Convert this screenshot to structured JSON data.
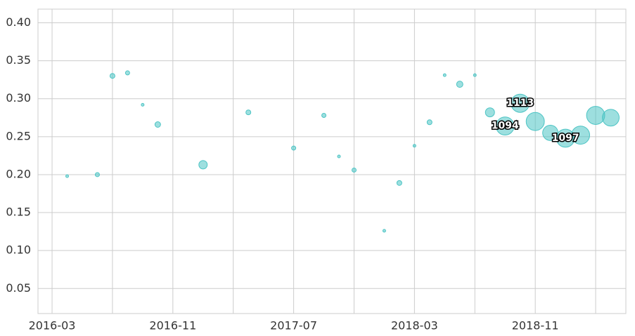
{
  "chart_data": {
    "type": "scatter",
    "x": [
      "2016-04",
      "2016-06",
      "2016-07",
      "2016-08",
      "2016-09",
      "2016-10",
      "2017-01",
      "2017-04",
      "2017-07",
      "2017-09",
      "2017-10",
      "2017-11",
      "2018-01",
      "2018-02",
      "2018-03",
      "2018-04",
      "2018-05",
      "2018-06",
      "2018-07",
      "2018-08",
      "2018-09",
      "2018-10",
      "2018-11",
      "2018-12",
      "2019-01",
      "2019-02",
      "2019-03",
      "2019-04"
    ],
    "values": [
      0.198,
      0.2,
      0.33,
      0.334,
      0.292,
      0.266,
      0.213,
      0.282,
      0.235,
      0.278,
      0.224,
      0.206,
      0.126,
      0.189,
      0.238,
      0.269,
      0.331,
      0.319,
      0.331,
      0.282,
      0.264,
      0.294,
      0.27,
      0.255,
      0.248,
      0.252,
      0.278,
      0.275
    ],
    "sizes": [
      26,
      59,
      80,
      59,
      26,
      104,
      234,
      80,
      59,
      59,
      26,
      59,
      26,
      80,
      26,
      80,
      26,
      132,
      26,
      275,
      1094,
      1113,
      1100,
      790,
      1097,
      1100,
      1100,
      940
    ],
    "color": "#4cc4c4",
    "annotations": [
      {
        "text": "1094",
        "x": "2018-09"
      },
      {
        "text": "1113",
        "x": "2018-10"
      },
      {
        "text": "1097",
        "x": "2019-01"
      }
    ],
    "xlim": [
      "2016-02-03",
      "2019-05-01"
    ],
    "xticks": [
      "2016-03",
      "2016-11",
      "2017-07",
      "2018-03",
      "2018-11"
    ],
    "xgrid": [
      "2016-07",
      "2017-03",
      "2017-11",
      "2018-07",
      "2019-03"
    ],
    "ylim": [
      0.017,
      0.418
    ],
    "yticks": [
      {
        "value": 0.05,
        "label": "0.05"
      },
      {
        "value": 0.1,
        "label": "0.10"
      },
      {
        "value": 0.15,
        "label": "0.15"
      },
      {
        "value": 0.2,
        "label": "0.20"
      },
      {
        "value": 0.25,
        "label": "0.25"
      },
      {
        "value": 0.3,
        "label": "0.30"
      },
      {
        "value": 0.35,
        "label": "0.35"
      },
      {
        "value": 0.4,
        "label": "0.40"
      }
    ],
    "grid": true
  }
}
